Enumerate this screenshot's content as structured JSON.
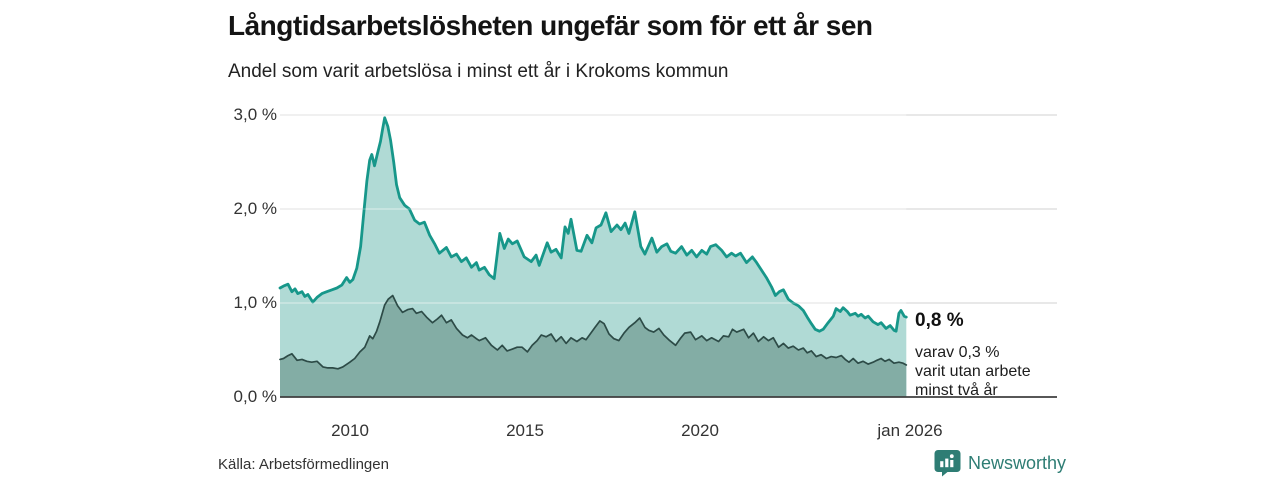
{
  "header": {
    "title": "Långtidsarbetslösheten ungefär som för ett år sen",
    "subtitle": "Andel som varit arbetslösa i minst ett år i Krokoms kommun"
  },
  "colors": {
    "accent_teal_line": "#17978a",
    "light_area_fill": "#a9d7d1",
    "dark_area_fill": "#7fa9a1",
    "dark_area_line": "#2d4b47",
    "gridline": "#d9d9d9",
    "baseline": "#3f3f3f",
    "brand_teal": "#2e7d74",
    "text_dark": "#141414"
  },
  "chart_data": {
    "type": "area",
    "title": "Långtidsarbetslösheten ungefär som för ett år sen",
    "subtitle": "Andel som varit arbetslösa i minst ett år i Krokoms kommun",
    "xlim": [
      2008.0,
      2026.0
    ],
    "ylim": [
      0,
      3.2
    ],
    "grid": "horizontal",
    "y_ticks": [
      {
        "label": "3,0 %",
        "value": 3.0
      },
      {
        "label": "2,0 %",
        "value": 2.0
      },
      {
        "label": "1,0 %",
        "value": 1.0
      },
      {
        "label": "0,0 %",
        "value": 0.0
      }
    ],
    "x_ticks": [
      {
        "label": "2010",
        "year": 2010
      },
      {
        "label": "2015",
        "year": 2015
      },
      {
        "label": "2020",
        "year": 2020
      },
      {
        "label": "jan 2026",
        "year": 2026
      }
    ],
    "series": [
      {
        "name": "Andel som varit arbetslösa i minst ett år",
        "end_label": "0,8 %",
        "points": [
          [
            2008.0,
            1.16
          ],
          [
            2008.1,
            1.18
          ],
          [
            2008.23,
            1.2
          ],
          [
            2008.34,
            1.12
          ],
          [
            2008.43,
            1.15
          ],
          [
            2008.51,
            1.1
          ],
          [
            2008.63,
            1.12
          ],
          [
            2008.71,
            1.07
          ],
          [
            2008.8,
            1.09
          ],
          [
            2008.94,
            1.01
          ],
          [
            2009.06,
            1.06
          ],
          [
            2009.2,
            1.1
          ],
          [
            2009.34,
            1.12
          ],
          [
            2009.49,
            1.14
          ],
          [
            2009.63,
            1.16
          ],
          [
            2009.77,
            1.19
          ],
          [
            2009.91,
            1.27
          ],
          [
            2010.0,
            1.22
          ],
          [
            2010.09,
            1.25
          ],
          [
            2010.2,
            1.37
          ],
          [
            2010.31,
            1.6
          ],
          [
            2010.4,
            1.95
          ],
          [
            2010.49,
            2.3
          ],
          [
            2010.57,
            2.52
          ],
          [
            2010.63,
            2.58
          ],
          [
            2010.71,
            2.46
          ],
          [
            2010.8,
            2.6
          ],
          [
            2010.88,
            2.72
          ],
          [
            2010.94,
            2.85
          ],
          [
            2011.0,
            2.97
          ],
          [
            2011.09,
            2.88
          ],
          [
            2011.17,
            2.73
          ],
          [
            2011.26,
            2.5
          ],
          [
            2011.34,
            2.26
          ],
          [
            2011.43,
            2.12
          ],
          [
            2011.57,
            2.04
          ],
          [
            2011.71,
            2.0
          ],
          [
            2011.86,
            1.88
          ],
          [
            2012.0,
            1.84
          ],
          [
            2012.14,
            1.86
          ],
          [
            2012.29,
            1.72
          ],
          [
            2012.43,
            1.63
          ],
          [
            2012.57,
            1.53
          ],
          [
            2012.77,
            1.59
          ],
          [
            2012.91,
            1.49
          ],
          [
            2013.06,
            1.52
          ],
          [
            2013.2,
            1.44
          ],
          [
            2013.34,
            1.48
          ],
          [
            2013.49,
            1.38
          ],
          [
            2013.63,
            1.43
          ],
          [
            2013.71,
            1.35
          ],
          [
            2013.86,
            1.38
          ],
          [
            2014.0,
            1.3
          ],
          [
            2014.14,
            1.26
          ],
          [
            2014.3,
            1.74
          ],
          [
            2014.43,
            1.58
          ],
          [
            2014.54,
            1.68
          ],
          [
            2014.66,
            1.63
          ],
          [
            2014.8,
            1.66
          ],
          [
            2015.0,
            1.49
          ],
          [
            2015.2,
            1.44
          ],
          [
            2015.34,
            1.51
          ],
          [
            2015.43,
            1.4
          ],
          [
            2015.66,
            1.64
          ],
          [
            2015.77,
            1.54
          ],
          [
            2015.91,
            1.57
          ],
          [
            2016.06,
            1.48
          ],
          [
            2016.17,
            1.81
          ],
          [
            2016.26,
            1.74
          ],
          [
            2016.34,
            1.89
          ],
          [
            2016.51,
            1.56
          ],
          [
            2016.63,
            1.55
          ],
          [
            2016.8,
            1.72
          ],
          [
            2016.94,
            1.64
          ],
          [
            2017.06,
            1.8
          ],
          [
            2017.2,
            1.83
          ],
          [
            2017.34,
            1.96
          ],
          [
            2017.49,
            1.76
          ],
          [
            2017.66,
            1.83
          ],
          [
            2017.77,
            1.78
          ],
          [
            2017.89,
            1.85
          ],
          [
            2018.0,
            1.74
          ],
          [
            2018.17,
            1.97
          ],
          [
            2018.34,
            1.6
          ],
          [
            2018.46,
            1.52
          ],
          [
            2018.66,
            1.69
          ],
          [
            2018.8,
            1.54
          ],
          [
            2018.94,
            1.6
          ],
          [
            2019.09,
            1.63
          ],
          [
            2019.2,
            1.55
          ],
          [
            2019.34,
            1.53
          ],
          [
            2019.51,
            1.6
          ],
          [
            2019.66,
            1.51
          ],
          [
            2019.8,
            1.56
          ],
          [
            2019.94,
            1.49
          ],
          [
            2020.09,
            1.56
          ],
          [
            2020.23,
            1.52
          ],
          [
            2020.34,
            1.6
          ],
          [
            2020.49,
            1.62
          ],
          [
            2020.66,
            1.56
          ],
          [
            2020.8,
            1.49
          ],
          [
            2020.94,
            1.53
          ],
          [
            2021.06,
            1.5
          ],
          [
            2021.2,
            1.53
          ],
          [
            2021.37,
            1.43
          ],
          [
            2021.54,
            1.49
          ],
          [
            2021.66,
            1.43
          ],
          [
            2021.8,
            1.35
          ],
          [
            2021.94,
            1.27
          ],
          [
            2022.09,
            1.17
          ],
          [
            2022.2,
            1.08
          ],
          [
            2022.31,
            1.12
          ],
          [
            2022.43,
            1.14
          ],
          [
            2022.57,
            1.04
          ],
          [
            2022.71,
            1.0
          ],
          [
            2022.86,
            0.97
          ],
          [
            2023.0,
            0.92
          ],
          [
            2023.11,
            0.85
          ],
          [
            2023.23,
            0.78
          ],
          [
            2023.34,
            0.72
          ],
          [
            2023.46,
            0.7
          ],
          [
            2023.57,
            0.72
          ],
          [
            2023.71,
            0.79
          ],
          [
            2023.86,
            0.86
          ],
          [
            2023.94,
            0.94
          ],
          [
            2024.06,
            0.91
          ],
          [
            2024.14,
            0.95
          ],
          [
            2024.26,
            0.91
          ],
          [
            2024.34,
            0.87
          ],
          [
            2024.49,
            0.89
          ],
          [
            2024.57,
            0.86
          ],
          [
            2024.66,
            0.88
          ],
          [
            2024.77,
            0.84
          ],
          [
            2024.86,
            0.86
          ],
          [
            2025.0,
            0.8
          ],
          [
            2025.14,
            0.77
          ],
          [
            2025.23,
            0.79
          ],
          [
            2025.37,
            0.73
          ],
          [
            2025.49,
            0.76
          ],
          [
            2025.6,
            0.71
          ],
          [
            2025.66,
            0.7
          ],
          [
            2025.74,
            0.89
          ],
          [
            2025.8,
            0.92
          ],
          [
            2025.89,
            0.86
          ],
          [
            2025.95,
            0.85
          ]
        ]
      },
      {
        "name": "varav utan arbete minst två år",
        "end_label": "varav 0,3 %",
        "points": [
          [
            2008.0,
            0.4
          ],
          [
            2008.1,
            0.41
          ],
          [
            2008.23,
            0.44
          ],
          [
            2008.34,
            0.46
          ],
          [
            2008.49,
            0.39
          ],
          [
            2008.63,
            0.4
          ],
          [
            2008.77,
            0.38
          ],
          [
            2008.91,
            0.37
          ],
          [
            2009.06,
            0.38
          ],
          [
            2009.23,
            0.32
          ],
          [
            2009.37,
            0.31
          ],
          [
            2009.51,
            0.31
          ],
          [
            2009.66,
            0.3
          ],
          [
            2009.8,
            0.32
          ],
          [
            2010.0,
            0.37
          ],
          [
            2010.14,
            0.41
          ],
          [
            2010.29,
            0.48
          ],
          [
            2010.43,
            0.53
          ],
          [
            2010.57,
            0.65
          ],
          [
            2010.66,
            0.62
          ],
          [
            2010.77,
            0.7
          ],
          [
            2010.86,
            0.8
          ],
          [
            2011.0,
            0.98
          ],
          [
            2011.1,
            1.04
          ],
          [
            2011.23,
            1.08
          ],
          [
            2011.37,
            0.97
          ],
          [
            2011.51,
            0.9
          ],
          [
            2011.66,
            0.93
          ],
          [
            2011.8,
            0.94
          ],
          [
            2011.91,
            0.89
          ],
          [
            2012.06,
            0.91
          ],
          [
            2012.2,
            0.85
          ],
          [
            2012.37,
            0.79
          ],
          [
            2012.51,
            0.83
          ],
          [
            2012.63,
            0.87
          ],
          [
            2012.77,
            0.79
          ],
          [
            2012.91,
            0.82
          ],
          [
            2013.06,
            0.73
          ],
          [
            2013.23,
            0.66
          ],
          [
            2013.37,
            0.63
          ],
          [
            2013.49,
            0.66
          ],
          [
            2013.63,
            0.62
          ],
          [
            2013.71,
            0.6
          ],
          [
            2013.89,
            0.63
          ],
          [
            2014.06,
            0.55
          ],
          [
            2014.23,
            0.5
          ],
          [
            2014.37,
            0.55
          ],
          [
            2014.51,
            0.49
          ],
          [
            2014.66,
            0.51
          ],
          [
            2014.8,
            0.53
          ],
          [
            2014.94,
            0.53
          ],
          [
            2015.09,
            0.48
          ],
          [
            2015.23,
            0.55
          ],
          [
            2015.37,
            0.6
          ],
          [
            2015.49,
            0.66
          ],
          [
            2015.63,
            0.64
          ],
          [
            2015.77,
            0.67
          ],
          [
            2015.91,
            0.59
          ],
          [
            2016.06,
            0.64
          ],
          [
            2016.2,
            0.57
          ],
          [
            2016.34,
            0.63
          ],
          [
            2016.51,
            0.59
          ],
          [
            2016.66,
            0.63
          ],
          [
            2016.77,
            0.61
          ],
          [
            2016.89,
            0.67
          ],
          [
            2017.03,
            0.74
          ],
          [
            2017.17,
            0.81
          ],
          [
            2017.29,
            0.78
          ],
          [
            2017.43,
            0.67
          ],
          [
            2017.57,
            0.62
          ],
          [
            2017.71,
            0.6
          ],
          [
            2017.86,
            0.68
          ],
          [
            2018.0,
            0.74
          ],
          [
            2018.17,
            0.79
          ],
          [
            2018.31,
            0.84
          ],
          [
            2018.46,
            0.74
          ],
          [
            2018.57,
            0.71
          ],
          [
            2018.71,
            0.69
          ],
          [
            2018.86,
            0.73
          ],
          [
            2019.0,
            0.66
          ],
          [
            2019.17,
            0.6
          ],
          [
            2019.34,
            0.55
          ],
          [
            2019.49,
            0.63
          ],
          [
            2019.6,
            0.68
          ],
          [
            2019.77,
            0.69
          ],
          [
            2019.91,
            0.61
          ],
          [
            2020.09,
            0.65
          ],
          [
            2020.23,
            0.6
          ],
          [
            2020.37,
            0.63
          ],
          [
            2020.57,
            0.59
          ],
          [
            2020.71,
            0.65
          ],
          [
            2020.86,
            0.64
          ],
          [
            2020.97,
            0.72
          ],
          [
            2021.09,
            0.69
          ],
          [
            2021.29,
            0.72
          ],
          [
            2021.43,
            0.63
          ],
          [
            2021.57,
            0.68
          ],
          [
            2021.71,
            0.59
          ],
          [
            2021.86,
            0.64
          ],
          [
            2022.0,
            0.6
          ],
          [
            2022.14,
            0.63
          ],
          [
            2022.29,
            0.53
          ],
          [
            2022.43,
            0.57
          ],
          [
            2022.57,
            0.52
          ],
          [
            2022.71,
            0.54
          ],
          [
            2022.86,
            0.5
          ],
          [
            2023.0,
            0.52
          ],
          [
            2023.11,
            0.47
          ],
          [
            2023.23,
            0.49
          ],
          [
            2023.37,
            0.43
          ],
          [
            2023.51,
            0.45
          ],
          [
            2023.66,
            0.41
          ],
          [
            2023.8,
            0.43
          ],
          [
            2023.94,
            0.42
          ],
          [
            2024.09,
            0.44
          ],
          [
            2024.2,
            0.4
          ],
          [
            2024.31,
            0.37
          ],
          [
            2024.43,
            0.41
          ],
          [
            2024.57,
            0.36
          ],
          [
            2024.71,
            0.38
          ],
          [
            2024.86,
            0.35
          ],
          [
            2025.0,
            0.37
          ],
          [
            2025.11,
            0.39
          ],
          [
            2025.23,
            0.41
          ],
          [
            2025.34,
            0.38
          ],
          [
            2025.46,
            0.4
          ],
          [
            2025.6,
            0.36
          ],
          [
            2025.74,
            0.37
          ],
          [
            2025.86,
            0.36
          ],
          [
            2025.95,
            0.34
          ]
        ]
      }
    ],
    "legend_position": "annotation-right"
  },
  "annotations": {
    "value_label": "0,8 %",
    "lines": [
      "varav 0,3 %",
      "varit utan arbete",
      "minst två år"
    ]
  },
  "footer": {
    "source": "Källa: Arbetsförmedlingen",
    "brand": "Newsworthy"
  }
}
